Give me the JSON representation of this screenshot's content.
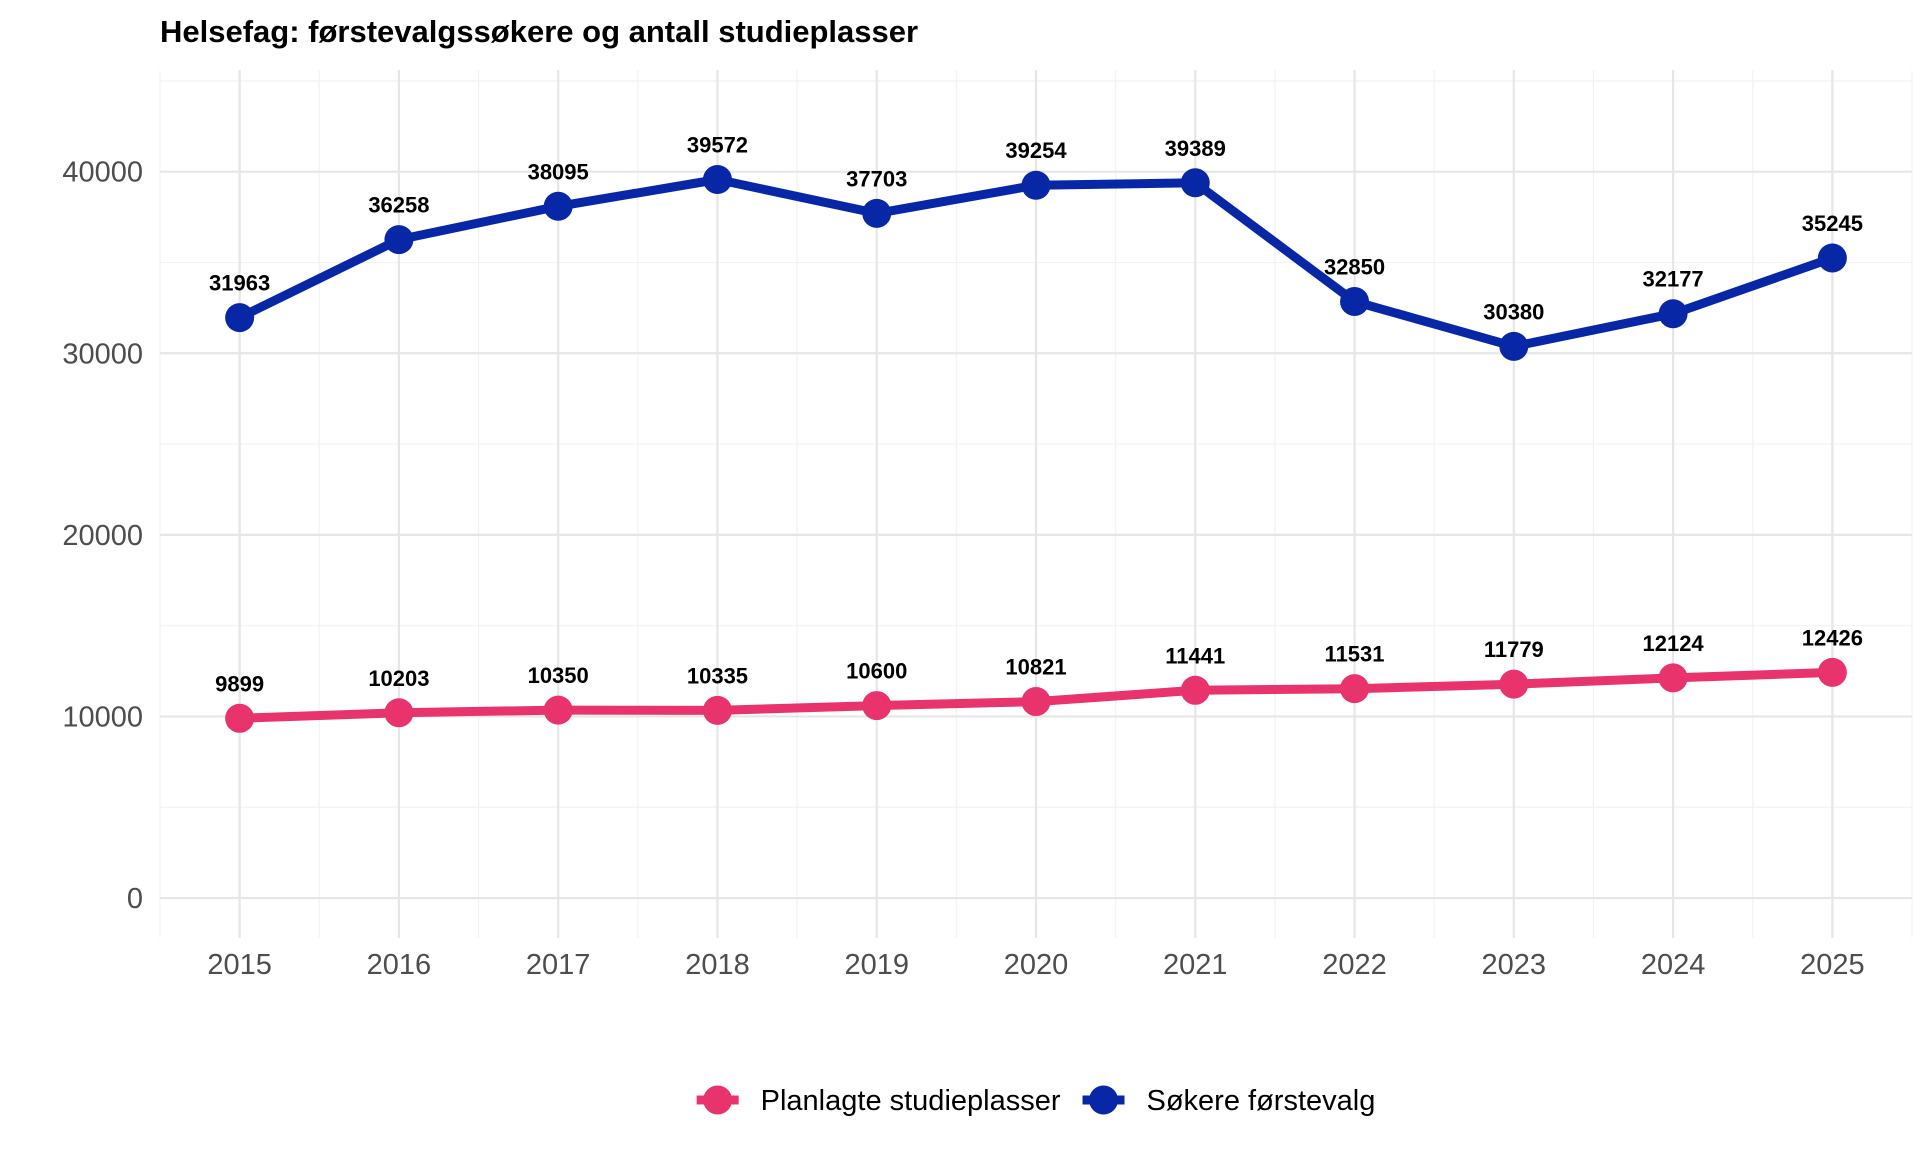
{
  "chart_data": {
    "type": "line",
    "title": "Helsefag: førstevalgssøkere og antall studieplasser",
    "xlabel": "",
    "ylabel": "",
    "x": [
      2015,
      2016,
      2017,
      2018,
      2019,
      2020,
      2021,
      2022,
      2023,
      2024,
      2025
    ],
    "x_ticks": [
      "2015",
      "2016",
      "2017",
      "2018",
      "2019",
      "2020",
      "2021",
      "2022",
      "2023",
      "2024",
      "2025"
    ],
    "y_ticks": [
      0,
      10000,
      20000,
      30000,
      40000
    ],
    "ylim": [
      -2200,
      45600
    ],
    "xlim": [
      2014.5,
      2025.5
    ],
    "grid": true,
    "legend_position": "bottom",
    "series": [
      {
        "name": "Planlagte studieplasser",
        "color": "#e8336d",
        "values": [
          9899,
          10203,
          10350,
          10335,
          10600,
          10821,
          11441,
          11531,
          11779,
          12124,
          12426
        ]
      },
      {
        "name": "Søkere førstevalg",
        "color": "#0727a6",
        "values": [
          31963,
          36258,
          38095,
          39572,
          37703,
          39254,
          39389,
          32850,
          30380,
          32177,
          35245
        ]
      }
    ]
  }
}
